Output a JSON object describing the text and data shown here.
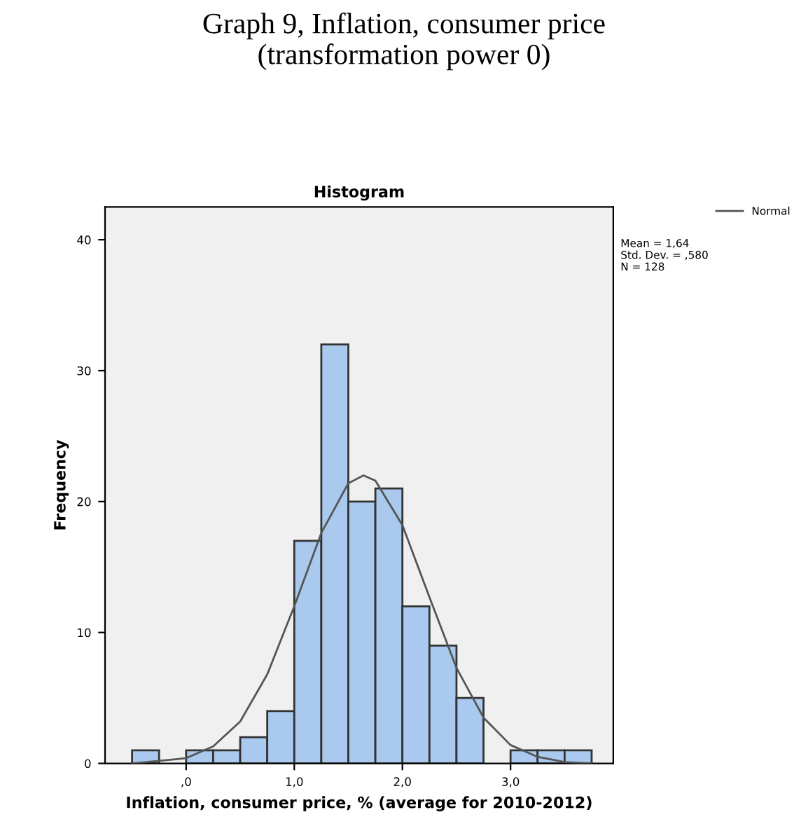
{
  "chart_data": {
    "type": "histogram",
    "title": "Graph 9, Inflation, consumer price\n(transformation power 0)",
    "subtitle": "Histogram",
    "xlabel": "Inflation, consumer price, % (average for 2010-2012)",
    "ylabel": "Frequency",
    "bins": [
      -0.5,
      -0.25,
      0,
      0.25,
      0.5,
      0.75,
      1.0,
      1.25,
      1.5,
      1.75,
      2.0,
      2.25,
      2.5,
      2.75,
      3.0,
      3.25,
      3.5,
      3.75
    ],
    "values": [
      1,
      0,
      1,
      1,
      2,
      4,
      17,
      32,
      20,
      21,
      12,
      9,
      5,
      0,
      1,
      1,
      1
    ],
    "color": "#a9c9ee",
    "series": [
      {
        "name": "Normal",
        "type": "line",
        "color": "#555555",
        "x": [
          -0.5,
          0,
          0.25,
          0.5,
          0.75,
          1.0,
          1.25,
          1.5,
          1.64,
          1.75,
          2.0,
          2.25,
          2.5,
          2.75,
          3.0,
          3.25,
          3.5,
          3.75
        ],
        "values": [
          0,
          0.4,
          1.3,
          3.2,
          6.8,
          12.0,
          17.6,
          21.4,
          22.0,
          21.6,
          18.2,
          12.7,
          7.3,
          3.5,
          1.4,
          0.5,
          0.1,
          0
        ]
      }
    ],
    "xlim": [
      -0.75,
      3.95
    ],
    "xticks": [
      {
        "value": 0,
        "label": ",0"
      },
      {
        "value": 1,
        "label": "1,0"
      },
      {
        "value": 2,
        "label": "2,0"
      },
      {
        "value": 3,
        "label": "3,0"
      }
    ],
    "ylim": [
      0,
      42.5
    ],
    "yticks": [
      0,
      10,
      20,
      30,
      40
    ],
    "grid": false,
    "legend": "top right",
    "annotations": [
      "Mean = 1,64",
      "Std. Dev. = ,580",
      "N = 128"
    ]
  }
}
